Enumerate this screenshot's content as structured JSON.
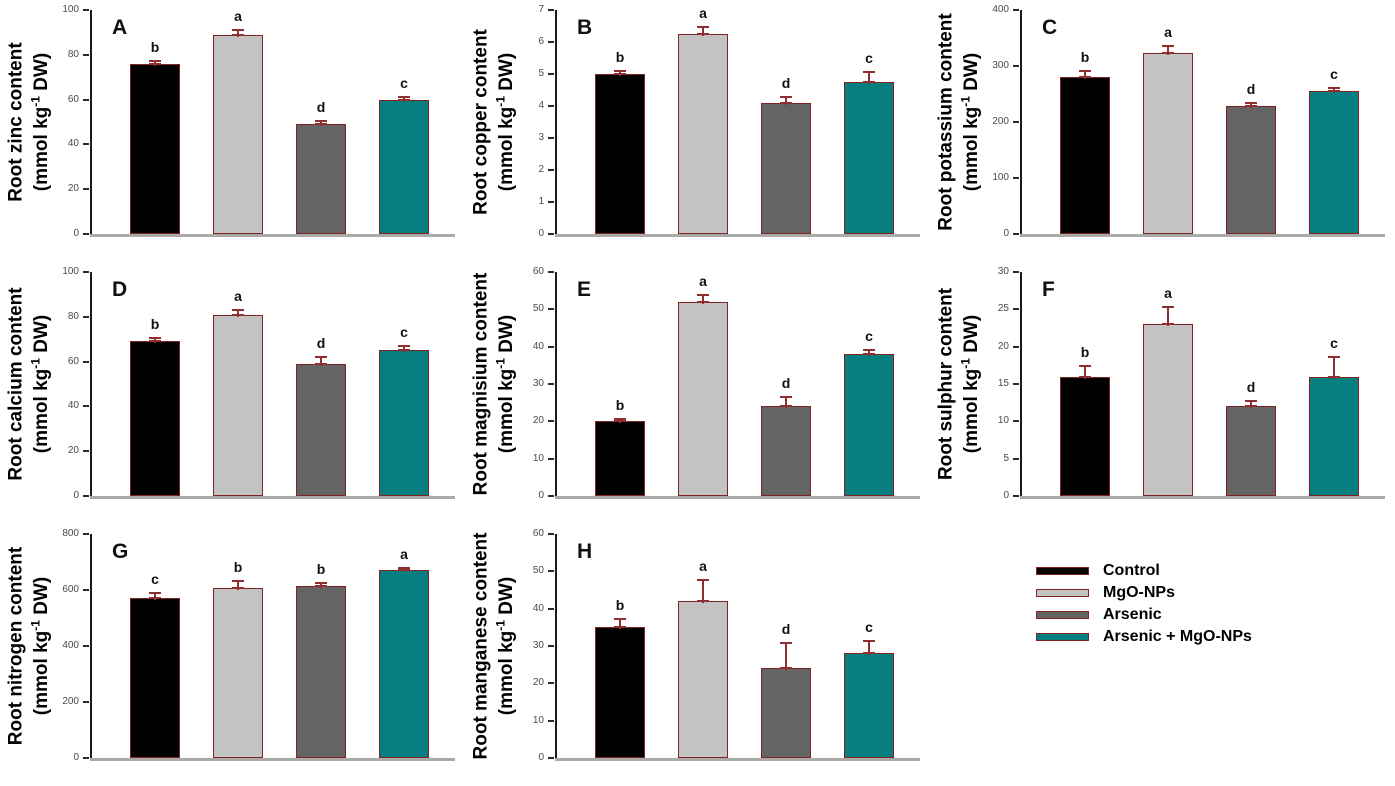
{
  "figure": {
    "background": "#ffffff"
  },
  "styles": {
    "bar_border": "#7e2222",
    "error_color": "#8f2f2f",
    "x_axis_color": "#aaaaaa",
    "y_axis_color": "#1a1a1a",
    "tick_label_color": "#4a4a4a",
    "bar_colors": [
      "#000000",
      "#c3c3c3",
      "#646464",
      "#077e80"
    ]
  },
  "treatments": [
    "Control",
    "MgO-NPs",
    "Arsenic",
    "Arsenic + MgO-NPs"
  ],
  "unit_parts": [
    "(mmol kg",
    "-1",
    " DW)"
  ],
  "legend": {
    "items": [
      {
        "label": "Control",
        "color": "#000000"
      },
      {
        "label": "MgO-NPs",
        "color": "#c3c3c3"
      },
      {
        "label": "Arsenic",
        "color": "#646464"
      },
      {
        "label": "Arsenic + MgO-NPs",
        "color": "#077e80"
      }
    ]
  },
  "chart_data": [
    {
      "panel": "A",
      "type": "bar",
      "title": "Root zinc content",
      "ylabel_unit": "(mmol kg-1 DW)",
      "categories": [
        "Control",
        "MgO-NPs",
        "Arsenic",
        "Arsenic + MgO-NPs"
      ],
      "values": [
        76,
        89,
        49,
        60
      ],
      "errors": [
        1.5,
        2.5,
        2,
        1.5
      ],
      "sig_letters": [
        "b",
        "a",
        "d",
        "c"
      ],
      "ylim": [
        0,
        100
      ],
      "yticks": [
        0,
        20,
        40,
        60,
        80,
        100
      ],
      "grid": false
    },
    {
      "panel": "B",
      "type": "bar",
      "title": "Root copper content",
      "ylabel_unit": "(mmol kg-1 DW)",
      "categories": [
        "Control",
        "MgO-NPs",
        "Arsenic",
        "Arsenic + MgO-NPs"
      ],
      "values": [
        5.0,
        6.25,
        4.1,
        4.75
      ],
      "errors": [
        0.12,
        0.25,
        0.2,
        0.33
      ],
      "sig_letters": [
        "b",
        "a",
        "d",
        "c"
      ],
      "ylim": [
        0,
        7
      ],
      "yticks": [
        0,
        1,
        2,
        3,
        4,
        5,
        6,
        7
      ],
      "grid": false
    },
    {
      "panel": "C",
      "type": "bar",
      "title": "Root potassium content",
      "ylabel_unit": "(mmol kg-1 DW)",
      "categories": [
        "Control",
        "MgO-NPs",
        "Arsenic",
        "Arsenic + MgO-NPs"
      ],
      "values": [
        280,
        323,
        228,
        256
      ],
      "errors": [
        12,
        14,
        8,
        6
      ],
      "sig_letters": [
        "b",
        "a",
        "d",
        "c"
      ],
      "ylim": [
        0,
        400
      ],
      "yticks": [
        0,
        100,
        200,
        300,
        400
      ],
      "grid": false
    },
    {
      "panel": "D",
      "type": "bar",
      "title": "Root calcium content",
      "ylabel_unit": "(mmol kg-1 DW)",
      "categories": [
        "Control",
        "MgO-NPs",
        "Arsenic",
        "Arsenic + MgO-NPs"
      ],
      "values": [
        69,
        81,
        59,
        65
      ],
      "errors": [
        2,
        2.5,
        3.5,
        2.5
      ],
      "sig_letters": [
        "b",
        "a",
        "d",
        "c"
      ],
      "ylim": [
        0,
        100
      ],
      "yticks": [
        0,
        20,
        40,
        60,
        80,
        100
      ],
      "grid": false
    },
    {
      "panel": "E",
      "type": "bar",
      "title": "Root magnisium content",
      "ylabel_unit": "(mmol kg-1 DW)",
      "categories": [
        "Control",
        "MgO-NPs",
        "Arsenic",
        "Arsenic + MgO-NPs"
      ],
      "values": [
        20,
        52,
        24,
        38
      ],
      "errors": [
        0.8,
        2,
        2.7,
        1.3
      ],
      "sig_letters": [
        "b",
        "a",
        "d",
        "c"
      ],
      "ylim": [
        0,
        60
      ],
      "yticks": [
        0,
        10,
        20,
        30,
        40,
        50,
        60
      ],
      "grid": false
    },
    {
      "panel": "F",
      "type": "bar",
      "title": "Root sulphur content",
      "ylabel_unit": "(mmol kg-1 DW)",
      "categories": [
        "Control",
        "MgO-NPs",
        "Arsenic",
        "Arsenic + MgO-NPs"
      ],
      "values": [
        16,
        23,
        12,
        16
      ],
      "errors": [
        1.6,
        2.5,
        0.8,
        2.8
      ],
      "sig_letters": [
        "b",
        "a",
        "d",
        "c"
      ],
      "ylim": [
        0,
        30
      ],
      "yticks": [
        0,
        5,
        10,
        15,
        20,
        25,
        30
      ],
      "grid": false
    },
    {
      "panel": "G",
      "type": "bar",
      "title": "Root nitrogen content",
      "ylabel_unit": "(mmol kg-1 DW)",
      "categories": [
        "Control",
        "MgO-NPs",
        "Arsenic",
        "Arsenic + MgO-NPs"
      ],
      "values": [
        570,
        607,
        613,
        672
      ],
      "errors": [
        22,
        30,
        15,
        9
      ],
      "sig_letters": [
        "c",
        "b",
        "b",
        "a"
      ],
      "ylim": [
        0,
        800
      ],
      "yticks": [
        0,
        200,
        400,
        600,
        800
      ],
      "grid": false
    },
    {
      "panel": "H",
      "type": "bar",
      "title": "Root manganese content",
      "ylabel_unit": "(mmol kg-1 DW)",
      "categories": [
        "Control",
        "MgO-NPs",
        "Arsenic",
        "Arsenic + MgO-NPs"
      ],
      "values": [
        35,
        42,
        24,
        28
      ],
      "errors": [
        2.5,
        6,
        7,
        3.5
      ],
      "sig_letters": [
        "b",
        "a",
        "d",
        "c"
      ],
      "ylim": [
        0,
        60
      ],
      "yticks": [
        0,
        10,
        20,
        30,
        40,
        50,
        60
      ],
      "grid": false
    }
  ]
}
